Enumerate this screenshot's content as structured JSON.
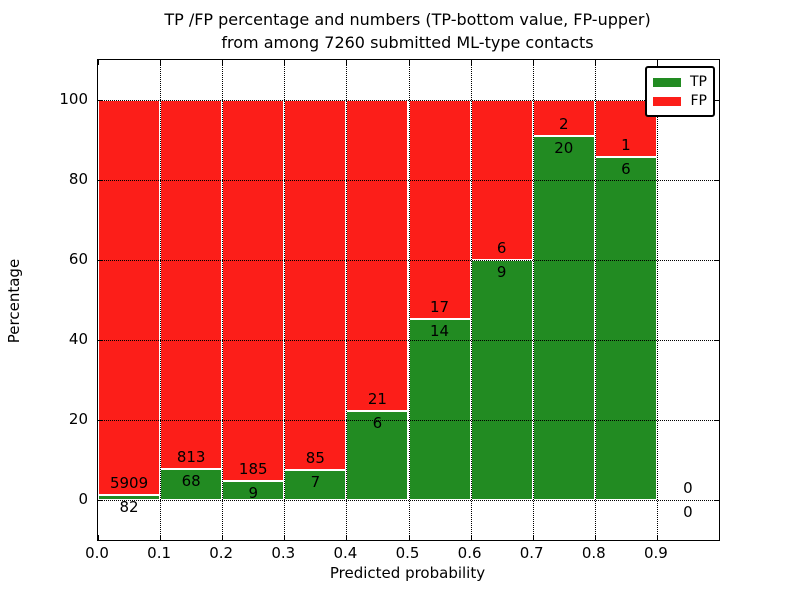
{
  "title": {
    "line1": "TP /FP percentage and numbers (TP-bottom value, FP-upper)",
    "line2": "from among 7260 submitted ML-type contacts"
  },
  "legend": {
    "position": "upper right",
    "items": [
      {
        "label": "TP",
        "color": "#228B22"
      },
      {
        "label": "FP",
        "color": "#FC1E19"
      }
    ]
  },
  "axes": {
    "xlabel": "Predicted probability",
    "ylabel": "Percentage",
    "x_tick_labels": [
      "0.0",
      "0.1",
      "0.2",
      "0.3",
      "0.4",
      "0.5",
      "0.6",
      "0.7",
      "0.8",
      "0.9"
    ],
    "y_tick_labels": [
      "0",
      "20",
      "40",
      "60",
      "80",
      "100"
    ],
    "y_tick_values": [
      0,
      20,
      40,
      60,
      80,
      100
    ],
    "grid_style": "dotted"
  },
  "chart_data": {
    "type": "bar",
    "subtype": "stacked-percentage",
    "title": "TP /FP percentage and numbers (TP-bottom value, FP-upper) from among 7260 submitted ML-type contacts",
    "total_contacts": 7260,
    "xlabel": "Predicted probability",
    "ylabel": "Percentage",
    "xlim": [
      0.0,
      1.0
    ],
    "ylim": [
      -10,
      110
    ],
    "bar_width": 0.1,
    "grid": true,
    "legend_position": "upper right",
    "categories": [
      "0.0-0.1",
      "0.1-0.2",
      "0.2-0.3",
      "0.3-0.4",
      "0.4-0.5",
      "0.5-0.6",
      "0.6-0.7",
      "0.7-0.8",
      "0.8-0.9",
      "0.9-1.0"
    ],
    "series": [
      {
        "name": "TP",
        "color": "#228B22",
        "counts": [
          82,
          68,
          9,
          7,
          6,
          14,
          9,
          20,
          6,
          0
        ]
      },
      {
        "name": "FP",
        "color": "#FC1E19",
        "counts": [
          5909,
          813,
          185,
          85,
          21,
          17,
          6,
          2,
          1,
          0
        ]
      }
    ],
    "note": "Each bar is normalized to 100%; TP count label below the TP/FP boundary, FP count label above it"
  }
}
